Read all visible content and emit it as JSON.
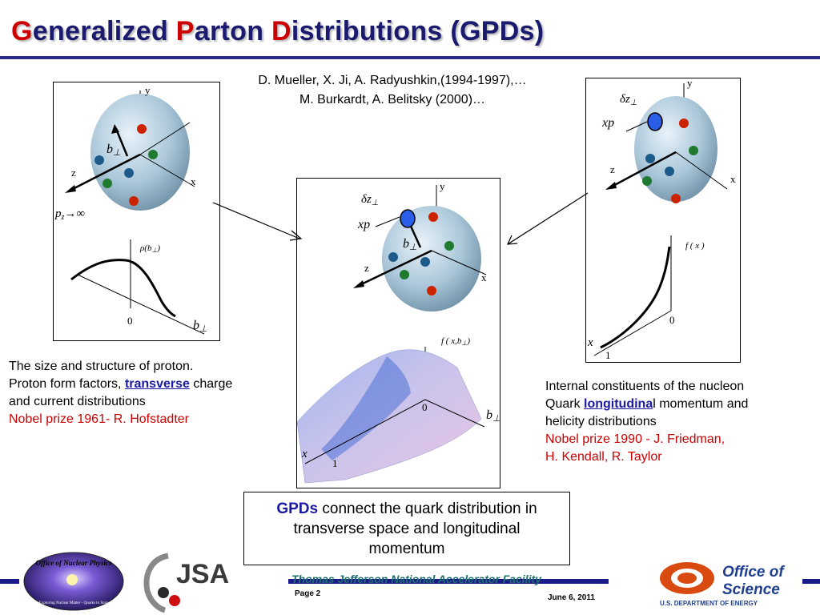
{
  "title": {
    "parts": [
      {
        "text": "G",
        "red": true
      },
      {
        "text": "eneralized ",
        "red": false
      },
      {
        "text": "P",
        "red": true
      },
      {
        "text": "arton ",
        "red": false
      },
      {
        "text": "D",
        "red": true
      },
      {
        "text": "istributions  (GPDs)",
        "red": false
      }
    ]
  },
  "citation": {
    "line1": "D. Mueller, X. Ji, A. Radyushkin,(1994-1997),…",
    "line2": "M. Burkardt, A. Belitsky (2000)…"
  },
  "left_text": {
    "line1": "The size and structure of proton.",
    "line2_pre": "Proton form factors, ",
    "line2_kw": "transverse",
    "line2_post": " charge",
    "line3": "and current distributions",
    "line4": "Nobel prize 1961- R. Hofstadter"
  },
  "right_text": {
    "line1": "Internal constituents of the nucleon",
    "line2_pre": "Quark ",
    "line2_kw": "longitudina",
    "line2_post": "l momentum and",
    "line3": "helicity distributions",
    "line4": "Nobel prize 1990 - J. Friedman,",
    "line5": "H. Kendall, R. Taylor"
  },
  "gpd_box": {
    "kw": "GPDs",
    "line1": " connect the quark distribution in",
    "line2": "transverse space and longitudinal",
    "line3": "momentum"
  },
  "figures": {
    "left": {
      "y": "y",
      "z": "z",
      "x": "x",
      "b": "b",
      "perp": "⊥",
      "pz": "p",
      "pz_sub": "z",
      "arrow_inf": "→∞",
      "rho": "ρ(b",
      "rho_end": ")",
      "zero": "0"
    },
    "center": {
      "y": "y",
      "z": "z",
      "x": "x",
      "dz": "δz",
      "xp": "xp",
      "b": "b",
      "perp": "⊥",
      "f": "f ( x,b",
      "f_end": ")",
      "zero": "0",
      "one": "1"
    },
    "right": {
      "y": "y",
      "z": "z",
      "x": "x",
      "dz": "δz",
      "xp": "xp",
      "perp": "⊥",
      "f": "f ( x )",
      "zero": "0",
      "one": "1"
    }
  },
  "footer": {
    "lab": "Thomas Jefferson National Accelerator Facility",
    "page": "Page 2",
    "date": "June 6, 2011",
    "onp_top": "Office of Nuclear Physics",
    "onp_bottom": "Exploring Nuclear Matter - Quarks to Stars",
    "jsa": "JSA",
    "os_line1": "Office of",
    "os_line2": "Science",
    "os_line3": "U.S. DEPARTMENT OF ENERGY"
  },
  "colors": {
    "title_blue": "#1a1a6e",
    "accent_red": "#cc0000",
    "link_blue": "#1a1aa6",
    "rule_blue": "#2a2a8a"
  }
}
